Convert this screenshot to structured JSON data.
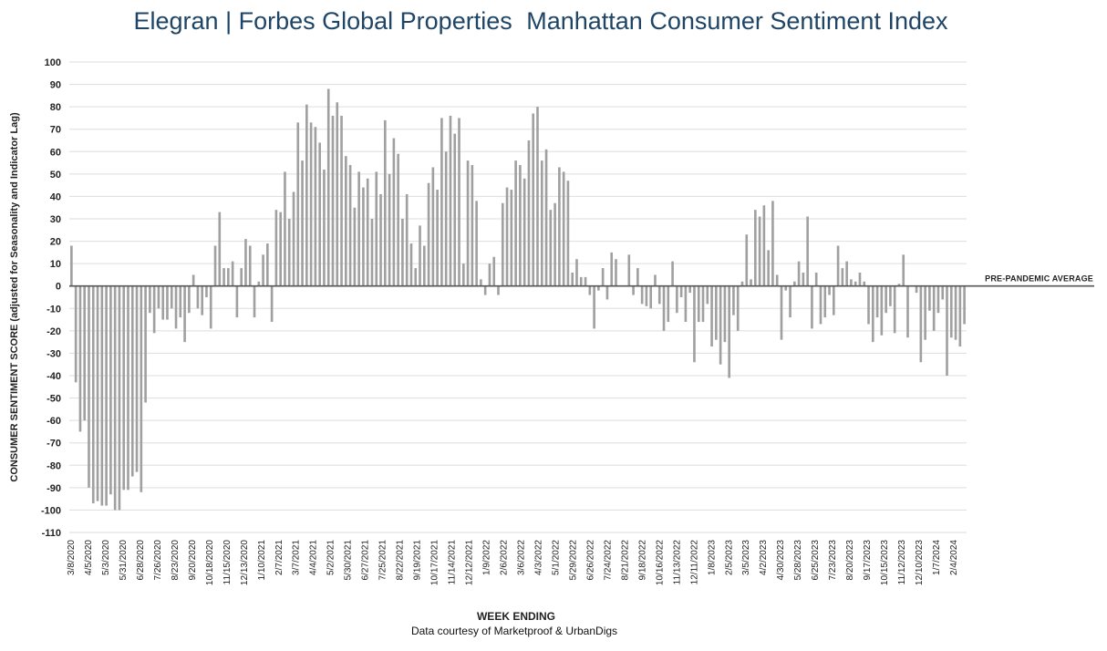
{
  "title_bold": "Elegran | Forbes Global Properties",
  "title_light": "Manhattan Consumer Sentiment Index",
  "colors": {
    "title": "#1f4566",
    "bar": "#a0a0a0",
    "grid": "#dddddd",
    "zero": "#555555"
  },
  "chart_data": {
    "type": "bar",
    "title": "Elegran | Forbes Global Properties Manhattan Consumer Sentiment Index",
    "xlabel": "WEEK ENDING",
    "ylabel": "CONSUMER SENTIMENT SCORE (adjusted for Seasonality and Indicator Lag)",
    "credit": "Data courtesy of Marketproof & UrbanDigs",
    "reference_line": {
      "value": 0,
      "label": "PRE-PANDEMIC  AVERAGE"
    },
    "ylim": [
      -110,
      100
    ],
    "yticks": [
      100,
      90,
      80,
      70,
      60,
      50,
      40,
      30,
      20,
      10,
      0,
      -10,
      -20,
      -30,
      -40,
      -50,
      -60,
      -70,
      -80,
      -90,
      -100,
      -110
    ],
    "grid": true,
    "legend": "none",
    "x_start": "3/8/2020",
    "x_end": "2/4/2024",
    "x_tick_labels": [
      "3/8/2020",
      "4/5/2020",
      "5/3/2020",
      "5/31/2020",
      "6/28/2020",
      "7/26/2020",
      "8/23/2020",
      "9/20/2020",
      "10/18/2020",
      "11/15/2020",
      "12/13/2020",
      "1/10/2021",
      "2/7/2021",
      "3/7/2021",
      "4/4/2021",
      "5/2/2021",
      "5/30/2021",
      "6/27/2021",
      "7/25/2021",
      "8/22/2021",
      "9/19/2021",
      "10/17/2021",
      "11/14/2021",
      "12/12/2021",
      "1/9/2022",
      "2/6/2022",
      "3/6/2022",
      "4/3/2022",
      "5/1/2022",
      "5/29/2022",
      "6/26/2022",
      "7/24/2022",
      "8/21/2022",
      "9/18/2022",
      "10/16/2022",
      "11/13/2022",
      "12/11/2022",
      "1/8/2023",
      "2/5/2023",
      "3/5/2023",
      "4/2/2023",
      "4/30/2023",
      "5/28/2023",
      "6/25/2023",
      "7/23/2023",
      "8/20/2023",
      "9/17/2023",
      "10/15/2023",
      "11/12/2023",
      "12/10/2023",
      "1/7/2024",
      "2/4/2024"
    ],
    "series": [
      {
        "values": [
          18,
          -43,
          -65,
          -60,
          -90,
          -97,
          -96,
          -98,
          -98,
          -93,
          -100,
          -100,
          -91,
          -91,
          -85,
          -83,
          -92,
          -52,
          -12,
          -21,
          -10,
          -15,
          -15,
          -10,
          -19,
          -14,
          -25,
          -12,
          5,
          -10,
          -13,
          -5,
          -19,
          18,
          33,
          8,
          8,
          11,
          -14,
          8,
          21,
          18,
          -14,
          2,
          14,
          19,
          -16,
          34,
          33,
          51,
          30,
          42,
          73,
          56,
          81,
          73,
          71,
          64,
          52,
          88,
          76,
          82,
          76,
          58,
          54,
          35,
          51,
          44,
          48,
          30,
          51,
          41,
          74,
          50,
          66,
          59,
          30,
          41,
          19,
          8,
          27,
          18,
          46,
          53,
          43,
          75,
          60,
          76,
          68,
          75,
          10,
          56,
          54,
          38,
          3,
          -4,
          10,
          13,
          -4,
          37,
          44,
          43,
          56,
          54,
          48,
          65,
          77,
          80,
          56,
          61,
          34,
          37,
          53,
          51,
          47,
          6,
          12,
          4,
          4,
          -4,
          -19,
          -2,
          8,
          -6,
          15,
          12,
          0,
          0,
          14,
          -4,
          8,
          -8,
          -9,
          -10,
          5,
          -8,
          -20,
          -16,
          11,
          -12,
          -5,
          -16,
          -3,
          -34,
          -16,
          -16,
          -8,
          -27,
          -24,
          -35,
          -25,
          -41,
          -13,
          -20,
          2,
          23,
          3,
          34,
          31,
          36,
          16,
          38,
          5,
          -24,
          -2,
          -14,
          2,
          11,
          6,
          31,
          -19,
          6,
          -17,
          -14,
          -4,
          -13,
          18,
          8,
          11,
          3,
          2,
          6,
          2,
          -17,
          -25,
          -14,
          -22,
          -12,
          -9,
          -21,
          1,
          14,
          -23,
          0,
          -3,
          -34,
          -24,
          -11,
          -20,
          -12,
          -6,
          -40,
          -23,
          -24,
          -27,
          -17
        ]
      }
    ]
  }
}
